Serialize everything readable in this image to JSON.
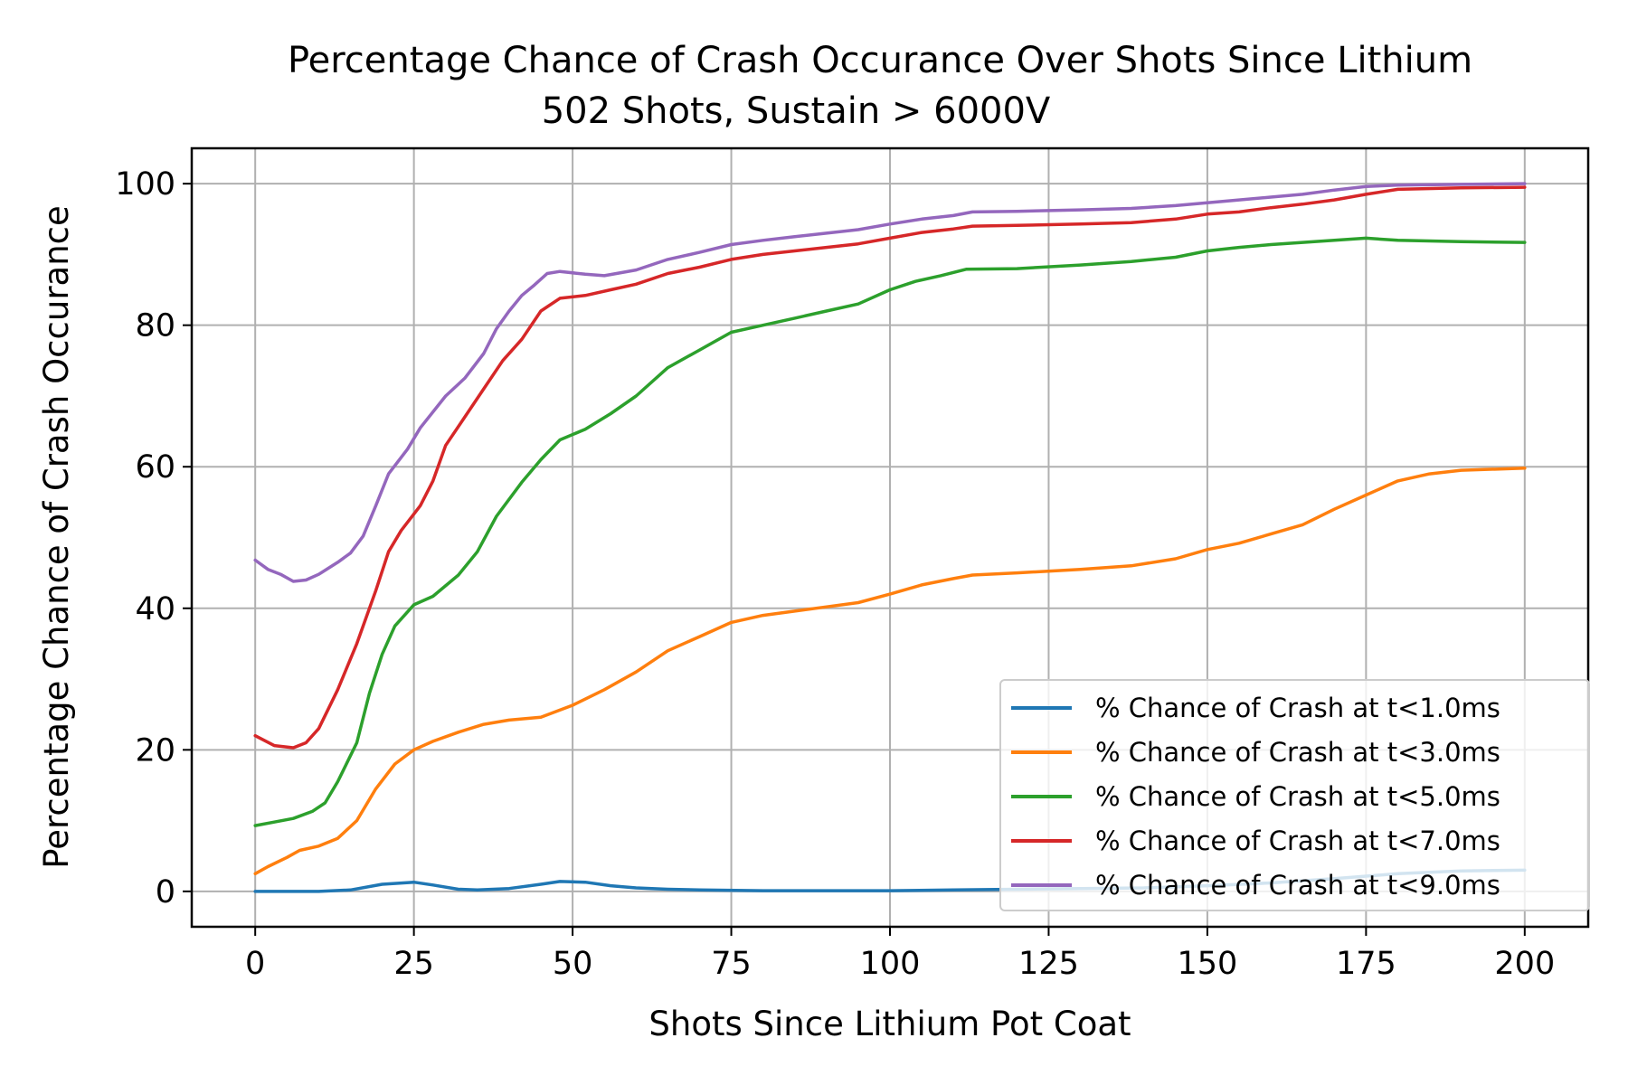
{
  "chart_data": {
    "type": "line",
    "title": "Percentage Chance of Crash Occurance Over Shots Since Lithium",
    "subtitle": "502 Shots, Sustain > 6000V",
    "xlabel": "Shots Since Lithium Pot Coat",
    "ylabel": "Percentage Chance of Crash Occurance",
    "xlim": [
      -10,
      210
    ],
    "ylim": [
      -5,
      105
    ],
    "xticks": [
      0,
      25,
      50,
      75,
      100,
      125,
      150,
      175,
      200
    ],
    "yticks": [
      0,
      20,
      40,
      60,
      80,
      100
    ],
    "grid": true,
    "legend_position": "lower-right",
    "series": [
      {
        "name": "% Chance of Crash at t<1.0ms",
        "color": "#1f77b4",
        "points": [
          [
            0,
            0
          ],
          [
            5,
            0
          ],
          [
            10,
            0
          ],
          [
            15,
            0.2
          ],
          [
            20,
            1
          ],
          [
            25,
            1.3
          ],
          [
            28,
            0.9
          ],
          [
            32,
            0.3
          ],
          [
            35,
            0.2
          ],
          [
            40,
            0.4
          ],
          [
            45,
            1
          ],
          [
            48,
            1.4
          ],
          [
            52,
            1.3
          ],
          [
            56,
            0.8
          ],
          [
            60,
            0.5
          ],
          [
            65,
            0.3
          ],
          [
            70,
            0.2
          ],
          [
            80,
            0.1
          ],
          [
            90,
            0.1
          ],
          [
            100,
            0.1
          ],
          [
            110,
            0.2
          ],
          [
            120,
            0.3
          ],
          [
            130,
            0.4
          ],
          [
            140,
            0.5
          ],
          [
            150,
            0.8
          ],
          [
            160,
            1.2
          ],
          [
            170,
            1.8
          ],
          [
            180,
            2.5
          ],
          [
            190,
            2.9
          ],
          [
            200,
            3
          ]
        ]
      },
      {
        "name": "% Chance of Crash at t<3.0ms",
        "color": "#ff7f0e",
        "points": [
          [
            0,
            2.5
          ],
          [
            2,
            3.5
          ],
          [
            5,
            4.8
          ],
          [
            7,
            5.8
          ],
          [
            10,
            6.4
          ],
          [
            13,
            7.5
          ],
          [
            16,
            10
          ],
          [
            19,
            14.5
          ],
          [
            22,
            18
          ],
          [
            25,
            20
          ],
          [
            28,
            21.2
          ],
          [
            32,
            22.5
          ],
          [
            36,
            23.6
          ],
          [
            40,
            24.2
          ],
          [
            45,
            24.6
          ],
          [
            50,
            26.3
          ],
          [
            55,
            28.5
          ],
          [
            60,
            31
          ],
          [
            65,
            34
          ],
          [
            70,
            36
          ],
          [
            75,
            38
          ],
          [
            80,
            39
          ],
          [
            85,
            39.6
          ],
          [
            90,
            40.2
          ],
          [
            95,
            40.8
          ],
          [
            100,
            42
          ],
          [
            105,
            43.3
          ],
          [
            110,
            44.2
          ],
          [
            113,
            44.7
          ],
          [
            120,
            45
          ],
          [
            130,
            45.5
          ],
          [
            138,
            46
          ],
          [
            145,
            47
          ],
          [
            150,
            48.3
          ],
          [
            155,
            49.2
          ],
          [
            160,
            50.5
          ],
          [
            165,
            51.8
          ],
          [
            170,
            54
          ],
          [
            175,
            56
          ],
          [
            180,
            58
          ],
          [
            185,
            59
          ],
          [
            190,
            59.5
          ],
          [
            200,
            59.8
          ]
        ]
      },
      {
        "name": "% Chance of Crash at t<5.0ms",
        "color": "#2ca02c",
        "points": [
          [
            0,
            9.3
          ],
          [
            3,
            9.8
          ],
          [
            6,
            10.3
          ],
          [
            9,
            11.3
          ],
          [
            11,
            12.5
          ],
          [
            13,
            15.5
          ],
          [
            16,
            21
          ],
          [
            18,
            28
          ],
          [
            20,
            33.5
          ],
          [
            22,
            37.5
          ],
          [
            25,
            40.5
          ],
          [
            28,
            41.7
          ],
          [
            32,
            44.7
          ],
          [
            35,
            48
          ],
          [
            38,
            53
          ],
          [
            42,
            57.8
          ],
          [
            45,
            61
          ],
          [
            48,
            63.8
          ],
          [
            52,
            65.3
          ],
          [
            56,
            67.5
          ],
          [
            60,
            70
          ],
          [
            65,
            74
          ],
          [
            70,
            76.5
          ],
          [
            75,
            79
          ],
          [
            80,
            80
          ],
          [
            85,
            81
          ],
          [
            90,
            82
          ],
          [
            95,
            83
          ],
          [
            100,
            85
          ],
          [
            104,
            86.2
          ],
          [
            108,
            87
          ],
          [
            112,
            87.9
          ],
          [
            120,
            88
          ],
          [
            130,
            88.5
          ],
          [
            138,
            89
          ],
          [
            145,
            89.6
          ],
          [
            150,
            90.5
          ],
          [
            155,
            91
          ],
          [
            160,
            91.4
          ],
          [
            170,
            92
          ],
          [
            175,
            92.3
          ],
          [
            180,
            92
          ],
          [
            190,
            91.8
          ],
          [
            200,
            91.7
          ]
        ]
      },
      {
        "name": "% Chance of Crash at t<7.0ms",
        "color": "#d62728",
        "points": [
          [
            0,
            22
          ],
          [
            3,
            20.6
          ],
          [
            6,
            20.3
          ],
          [
            8,
            21
          ],
          [
            10,
            23
          ],
          [
            13,
            28.5
          ],
          [
            16,
            35
          ],
          [
            19,
            42.5
          ],
          [
            21,
            48
          ],
          [
            23,
            51
          ],
          [
            26,
            54.5
          ],
          [
            28,
            58
          ],
          [
            30,
            63
          ],
          [
            33,
            67
          ],
          [
            36,
            71
          ],
          [
            39,
            75
          ],
          [
            42,
            78
          ],
          [
            45,
            82
          ],
          [
            48,
            83.8
          ],
          [
            52,
            84.2
          ],
          [
            56,
            85
          ],
          [
            60,
            85.8
          ],
          [
            65,
            87.3
          ],
          [
            70,
            88.2
          ],
          [
            75,
            89.3
          ],
          [
            80,
            90
          ],
          [
            85,
            90.5
          ],
          [
            90,
            91
          ],
          [
            95,
            91.5
          ],
          [
            100,
            92.3
          ],
          [
            105,
            93.1
          ],
          [
            110,
            93.6
          ],
          [
            113,
            94
          ],
          [
            120,
            94.1
          ],
          [
            130,
            94.3
          ],
          [
            138,
            94.5
          ],
          [
            145,
            95
          ],
          [
            150,
            95.7
          ],
          [
            155,
            96
          ],
          [
            160,
            96.6
          ],
          [
            165,
            97.1
          ],
          [
            170,
            97.7
          ],
          [
            175,
            98.5
          ],
          [
            180,
            99.2
          ],
          [
            190,
            99.4
          ],
          [
            200,
            99.5
          ]
        ]
      },
      {
        "name": "% Chance of Crash at t<9.0ms",
        "color": "#9467bd",
        "points": [
          [
            0,
            46.8
          ],
          [
            2,
            45.5
          ],
          [
            4,
            44.8
          ],
          [
            6,
            43.8
          ],
          [
            8,
            44
          ],
          [
            10,
            44.8
          ],
          [
            13,
            46.5
          ],
          [
            15,
            47.8
          ],
          [
            17,
            50.2
          ],
          [
            19,
            54.5
          ],
          [
            21,
            59
          ],
          [
            24,
            62.5
          ],
          [
            26,
            65.5
          ],
          [
            30,
            70
          ],
          [
            33,
            72.5
          ],
          [
            36,
            76
          ],
          [
            38,
            79.5
          ],
          [
            40,
            82
          ],
          [
            42,
            84.2
          ],
          [
            44,
            85.7
          ],
          [
            46,
            87.3
          ],
          [
            48,
            87.6
          ],
          [
            52,
            87.2
          ],
          [
            55,
            87
          ],
          [
            60,
            87.8
          ],
          [
            65,
            89.3
          ],
          [
            70,
            90.3
          ],
          [
            75,
            91.4
          ],
          [
            80,
            92
          ],
          [
            85,
            92.5
          ],
          [
            90,
            93
          ],
          [
            95,
            93.5
          ],
          [
            100,
            94.3
          ],
          [
            105,
            95
          ],
          [
            110,
            95.5
          ],
          [
            113,
            96
          ],
          [
            120,
            96.1
          ],
          [
            130,
            96.3
          ],
          [
            138,
            96.5
          ],
          [
            145,
            96.9
          ],
          [
            150,
            97.3
          ],
          [
            155,
            97.7
          ],
          [
            160,
            98.1
          ],
          [
            165,
            98.5
          ],
          [
            170,
            99.1
          ],
          [
            175,
            99.6
          ],
          [
            180,
            99.8
          ],
          [
            190,
            99.9
          ],
          [
            200,
            100
          ]
        ]
      }
    ]
  }
}
